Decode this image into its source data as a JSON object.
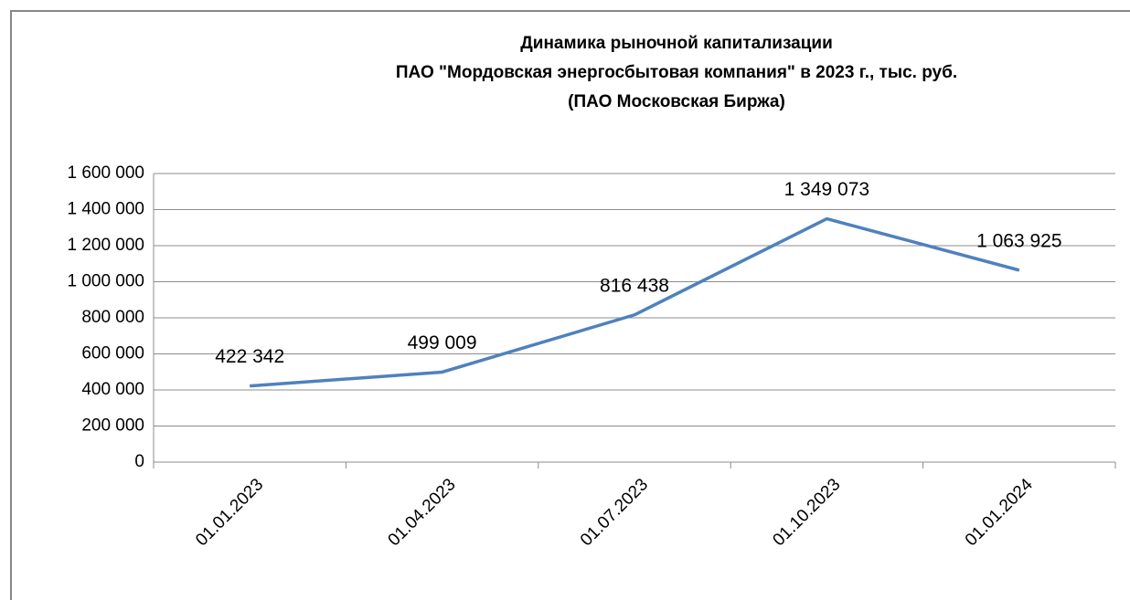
{
  "chart_data": {
    "type": "line",
    "title": [
      "Динамика рыночной капитализации",
      "ПАО \"Мордовская энергосбытовая компания\" в 2023 г., тыс. руб.",
      "(ПАО Московская Биржа)"
    ],
    "categories": [
      "01.01.2023",
      "01.04.2023",
      "01.07.2023",
      "01.10.2023",
      "01.01.2024"
    ],
    "series": [
      {
        "color": "#4f81bd",
        "values": [
          422342,
          499009,
          816438,
          1349073,
          1063925
        ],
        "value_labels": [
          "422 342",
          "499 009",
          "816 438",
          "1 349 073",
          "1 063 925"
        ]
      }
    ],
    "ylim": [
      0,
      1600000
    ],
    "yticks": [
      0,
      {
        "value": 200000,
        "label": "200 000"
      },
      {
        "value": 400000,
        "label": "400 000"
      },
      {
        "value": 600000,
        "label": "600 000"
      },
      {
        "value": 800000,
        "label": "800 000"
      },
      {
        "value": 1000000,
        "label": "1 000 000"
      },
      {
        "value": 1200000,
        "label": "1 200 000"
      },
      {
        "value": 1400000,
        "label": "1 400 000"
      },
      {
        "value": 1600000,
        "label": "1 600 000"
      }
    ],
    "grid": true
  }
}
